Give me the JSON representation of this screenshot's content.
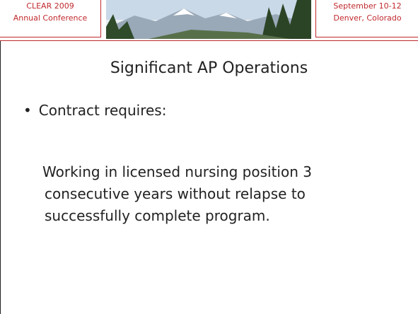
{
  "header": {
    "left": [
      "CLEAR 2009",
      "Annual Conference"
    ],
    "right": [
      "September 10-12",
      "Denver, Colorado"
    ]
  },
  "slide": {
    "title": "Significant AP Operations",
    "bullets": [
      "Contract requires:"
    ],
    "paragraph": [
      "Working in licensed nursing position 3",
      "consecutive years without relapse to",
      "successfully complete program."
    ]
  }
}
